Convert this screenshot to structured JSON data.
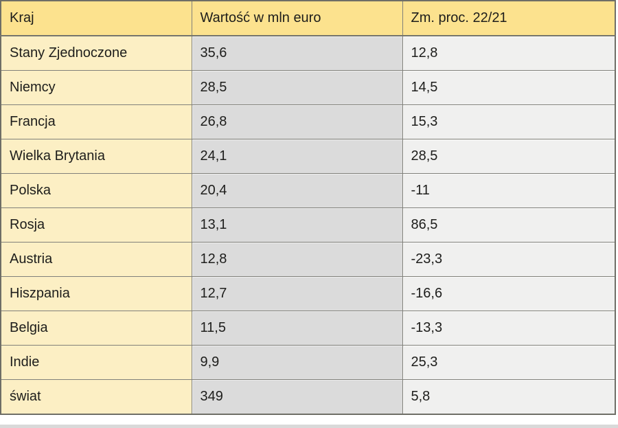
{
  "table": {
    "columns": [
      "Kraj",
      "Wartość w mln euro",
      "Zm. proc. 22/21"
    ],
    "rows": [
      [
        "Stany Zjednoczone",
        "35,6",
        "12,8"
      ],
      [
        "Niemcy",
        "28,5",
        "14,5"
      ],
      [
        "Francja",
        "26,8",
        "15,3"
      ],
      [
        "Wielka Brytania",
        "24,1",
        "28,5"
      ],
      [
        "Polska",
        "20,4",
        "-11"
      ],
      [
        "Rosja",
        "13,1",
        "86,5"
      ],
      [
        "Austria",
        "12,8",
        "-23,3"
      ],
      [
        "Hiszpania",
        "12,7",
        "-16,6"
      ],
      [
        "Belgia",
        "11,5",
        "-13,3"
      ],
      [
        "Indie",
        "9,9",
        "25,3"
      ],
      [
        "świat",
        "349",
        "5,8"
      ]
    ]
  },
  "chart_data": {
    "type": "table",
    "title": "",
    "columns": [
      "Kraj",
      "Wartość w mln euro",
      "Zm. proc. 22/21"
    ],
    "rows": [
      [
        "Stany Zjednoczone",
        35.6,
        12.8
      ],
      [
        "Niemcy",
        28.5,
        14.5
      ],
      [
        "Francja",
        26.8,
        15.3
      ],
      [
        "Wielka Brytania",
        24.1,
        28.5
      ],
      [
        "Polska",
        20.4,
        -11
      ],
      [
        "Rosja",
        13.1,
        86.5
      ],
      [
        "Austria",
        12.8,
        -23.3
      ],
      [
        "Hiszpania",
        12.7,
        -16.6
      ],
      [
        "Belgia",
        11.5,
        -13.3
      ],
      [
        "Indie",
        9.9,
        25.3
      ],
      [
        "świat",
        349,
        5.8
      ]
    ]
  },
  "colors": {
    "header_bg": "#fce28e",
    "first_col_bg": "#fcefc4",
    "value_col_bg": "#dbdbdb",
    "change_col_bg": "#f0f0ef",
    "border": "#80807a",
    "outer_border": "#6e6e66",
    "text": "#1d1d1b"
  }
}
